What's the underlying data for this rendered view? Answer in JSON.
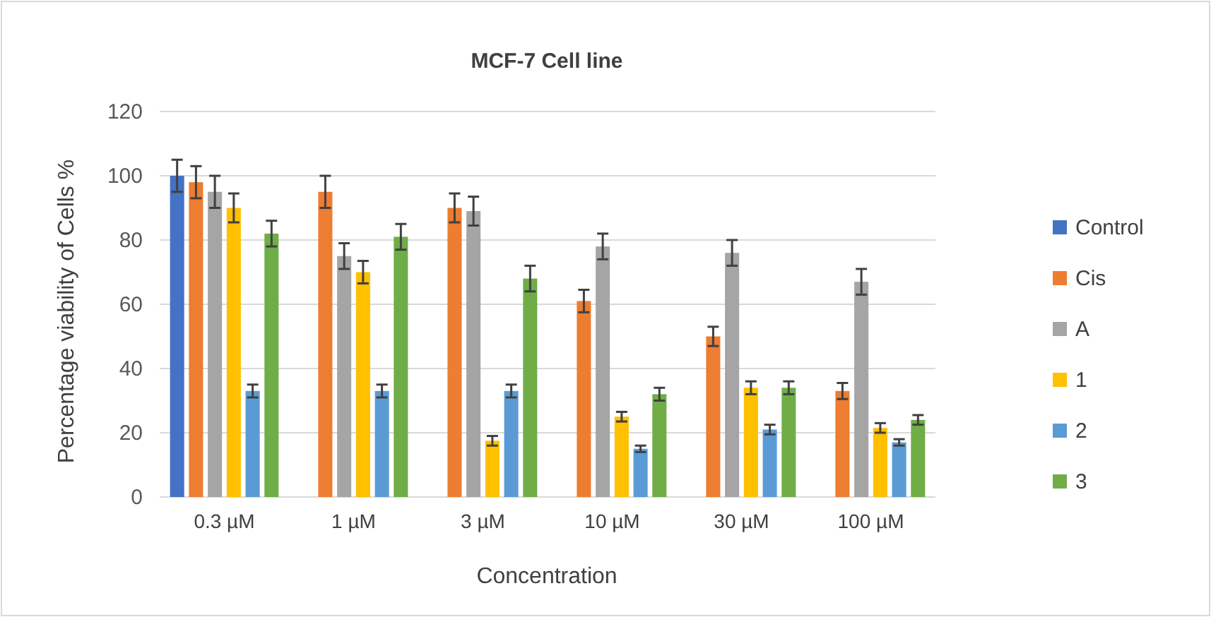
{
  "chart_data": {
    "type": "bar",
    "title": "MCF-7  Cell line",
    "xlabel": "Concentration",
    "ylabel": "Percentage viability of Cells %",
    "categories": [
      "0.3 µM",
      "1 µM",
      "3 µM",
      "10 µM",
      "30 µM",
      "100 µM"
    ],
    "series": [
      {
        "name": "Control",
        "color": "#4472c4",
        "values": [
          100,
          null,
          null,
          null,
          null,
          null
        ],
        "errors": [
          5,
          null,
          null,
          null,
          null,
          null
        ]
      },
      {
        "name": "Cis",
        "color": "#ed7d31",
        "values": [
          98,
          95,
          90,
          61,
          50,
          33
        ],
        "errors": [
          5,
          5,
          4.5,
          3.5,
          3,
          2.5
        ]
      },
      {
        "name": "A",
        "color": "#a5a5a5",
        "values": [
          95,
          75,
          89,
          78,
          76,
          67
        ],
        "errors": [
          5,
          4,
          4.5,
          4,
          4,
          4
        ]
      },
      {
        "name": "1",
        "color": "#ffc000",
        "values": [
          90,
          70,
          17.5,
          25,
          34,
          21.5
        ],
        "errors": [
          4.5,
          3.5,
          1.5,
          1.5,
          2,
          1.5
        ]
      },
      {
        "name": "2",
        "color": "#5b9bd5",
        "values": [
          33,
          33,
          33,
          15,
          21,
          17
        ],
        "errors": [
          2,
          2,
          2,
          1,
          1.5,
          1
        ]
      },
      {
        "name": "3",
        "color": "#70ad47",
        "values": [
          82,
          81,
          68,
          32,
          34,
          24
        ],
        "errors": [
          4,
          4,
          4,
          2,
          2,
          1.5
        ]
      }
    ],
    "ylim": [
      0,
      120
    ],
    "yticks": [
      0,
      20,
      40,
      60,
      80,
      100,
      120
    ],
    "grid": "y",
    "legend": "right"
  }
}
